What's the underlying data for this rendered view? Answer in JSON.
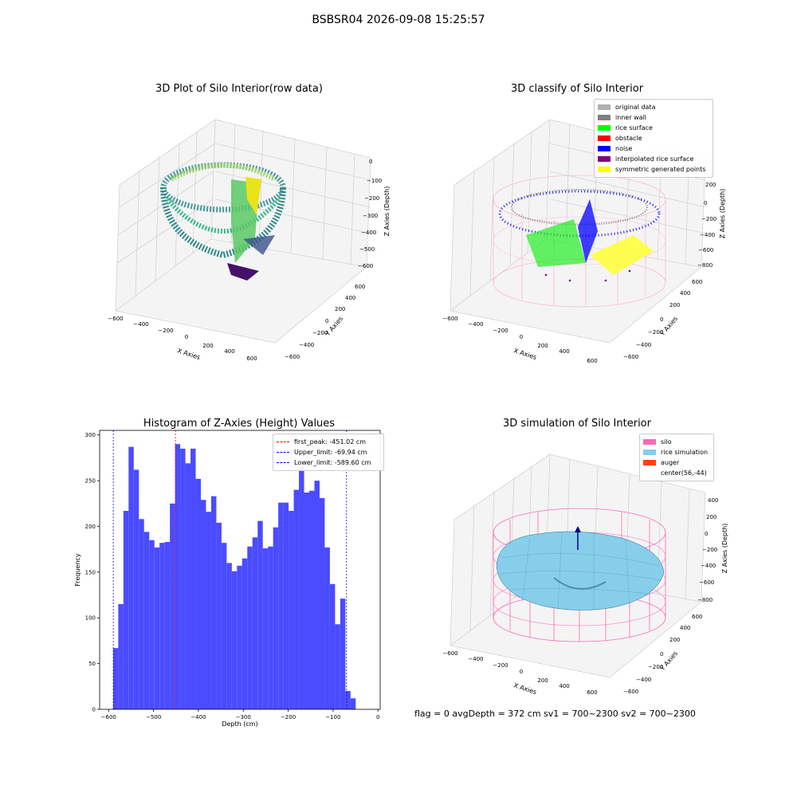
{
  "figure": {
    "suptitle": "BSBSR04 2026-09-08 15:25:57",
    "footer": "flag = 0     avgDepth = 372 cm  sv1 = 700~2300  sv2 = 700~2300"
  },
  "panels": {
    "raw": {
      "title": "3D Plot of Silo Interior(row data)",
      "xlabel": "X Axies",
      "ylabel": "Y Axies",
      "zlabel": "Z Axies (Depth)",
      "xticks": [
        "−600",
        "−400",
        "−200",
        "0",
        "200",
        "400",
        "600"
      ],
      "yticks": [
        "−600",
        "−400",
        "−200",
        "0",
        "200",
        "400",
        "600"
      ],
      "zticks": [
        "0",
        "−100",
        "−200",
        "−300",
        "−400",
        "−500",
        "−600"
      ]
    },
    "classify": {
      "title": "3D classify of Silo Interior",
      "xlabel": "X Axies",
      "ylabel": "Y Axies",
      "zlabel": "Z Axies (Depth)",
      "xticks": [
        "−600",
        "−400",
        "−200",
        "0",
        "200",
        "400",
        "600"
      ],
      "yticks": [
        "−600",
        "−400",
        "−200",
        "0",
        "200",
        "400",
        "600"
      ],
      "zticks": [
        "200",
        "0",
        "−200",
        "−400",
        "−600",
        "−800"
      ],
      "legend": [
        {
          "label": "original data",
          "color": "#b0b0b0"
        },
        {
          "label": "inner wall",
          "color": "#808080"
        },
        {
          "label": "rice surface",
          "color": "#00ff00"
        },
        {
          "label": "obstacle",
          "color": "#ff0000"
        },
        {
          "label": "noise",
          "color": "#0000ff"
        },
        {
          "label": "interpolated rice surface",
          "color": "#800080"
        },
        {
          "label": "symmetric generated points",
          "color": "#ffff00"
        }
      ]
    },
    "simulation": {
      "title": "3D simulation of Silo Interior",
      "xlabel": "X Axies",
      "ylabel": "Y Axies",
      "zlabel": "Z Axies (Depth)",
      "xticks": [
        "−600",
        "−400",
        "−200",
        "0",
        "200",
        "400",
        "600"
      ],
      "yticks": [
        "−600",
        "−400",
        "−200",
        "0",
        "200",
        "400",
        "600"
      ],
      "zticks": [
        "400",
        "200",
        "0",
        "−200",
        "−400",
        "−600",
        "−800"
      ],
      "legend": [
        {
          "label": "silo",
          "color": "#ff69b4"
        },
        {
          "label": "rice simulation",
          "color": "#87ceeb"
        },
        {
          "label": "auger",
          "color": "#ff4500"
        },
        {
          "label": "center(56,-44)",
          "color": ""
        }
      ]
    }
  },
  "chart_data": {
    "type": "bar",
    "title": "Histogram of Z-Axies (Height) Values",
    "xlabel": "Depth (cm)",
    "ylabel": "Frequency",
    "xlim": [
      -620,
      5
    ],
    "ylim": [
      0,
      305
    ],
    "xticks": [
      -600,
      -500,
      -400,
      -300,
      -200,
      -100,
      0
    ],
    "yticks": [
      0,
      50,
      100,
      150,
      200,
      250,
      300
    ],
    "bar_color": "#4b4bff",
    "bin_start": -590,
    "bin_width": 11.5,
    "values": [
      67,
      115,
      217,
      287,
      262,
      208,
      194,
      185,
      177,
      182,
      183,
      225,
      290,
      285,
      269,
      285,
      252,
      229,
      216,
      233,
      204,
      182,
      160,
      151,
      157,
      165,
      178,
      188,
      206,
      176,
      178,
      199,
      226,
      226,
      217,
      240,
      265,
      237,
      239,
      250,
      231,
      177,
      137,
      93,
      121,
      20,
      12
    ],
    "vlines": [
      {
        "label": "first_peak: -451.02 cm",
        "x": -451.02,
        "color": "#ff0000"
      },
      {
        "label": "Upper_limit: -69.94 cm",
        "x": -69.94,
        "color": "#0000ff"
      },
      {
        "label": "Lower_limit: -589.60 cm",
        "x": -589.6,
        "color": "#0000ff"
      }
    ]
  }
}
